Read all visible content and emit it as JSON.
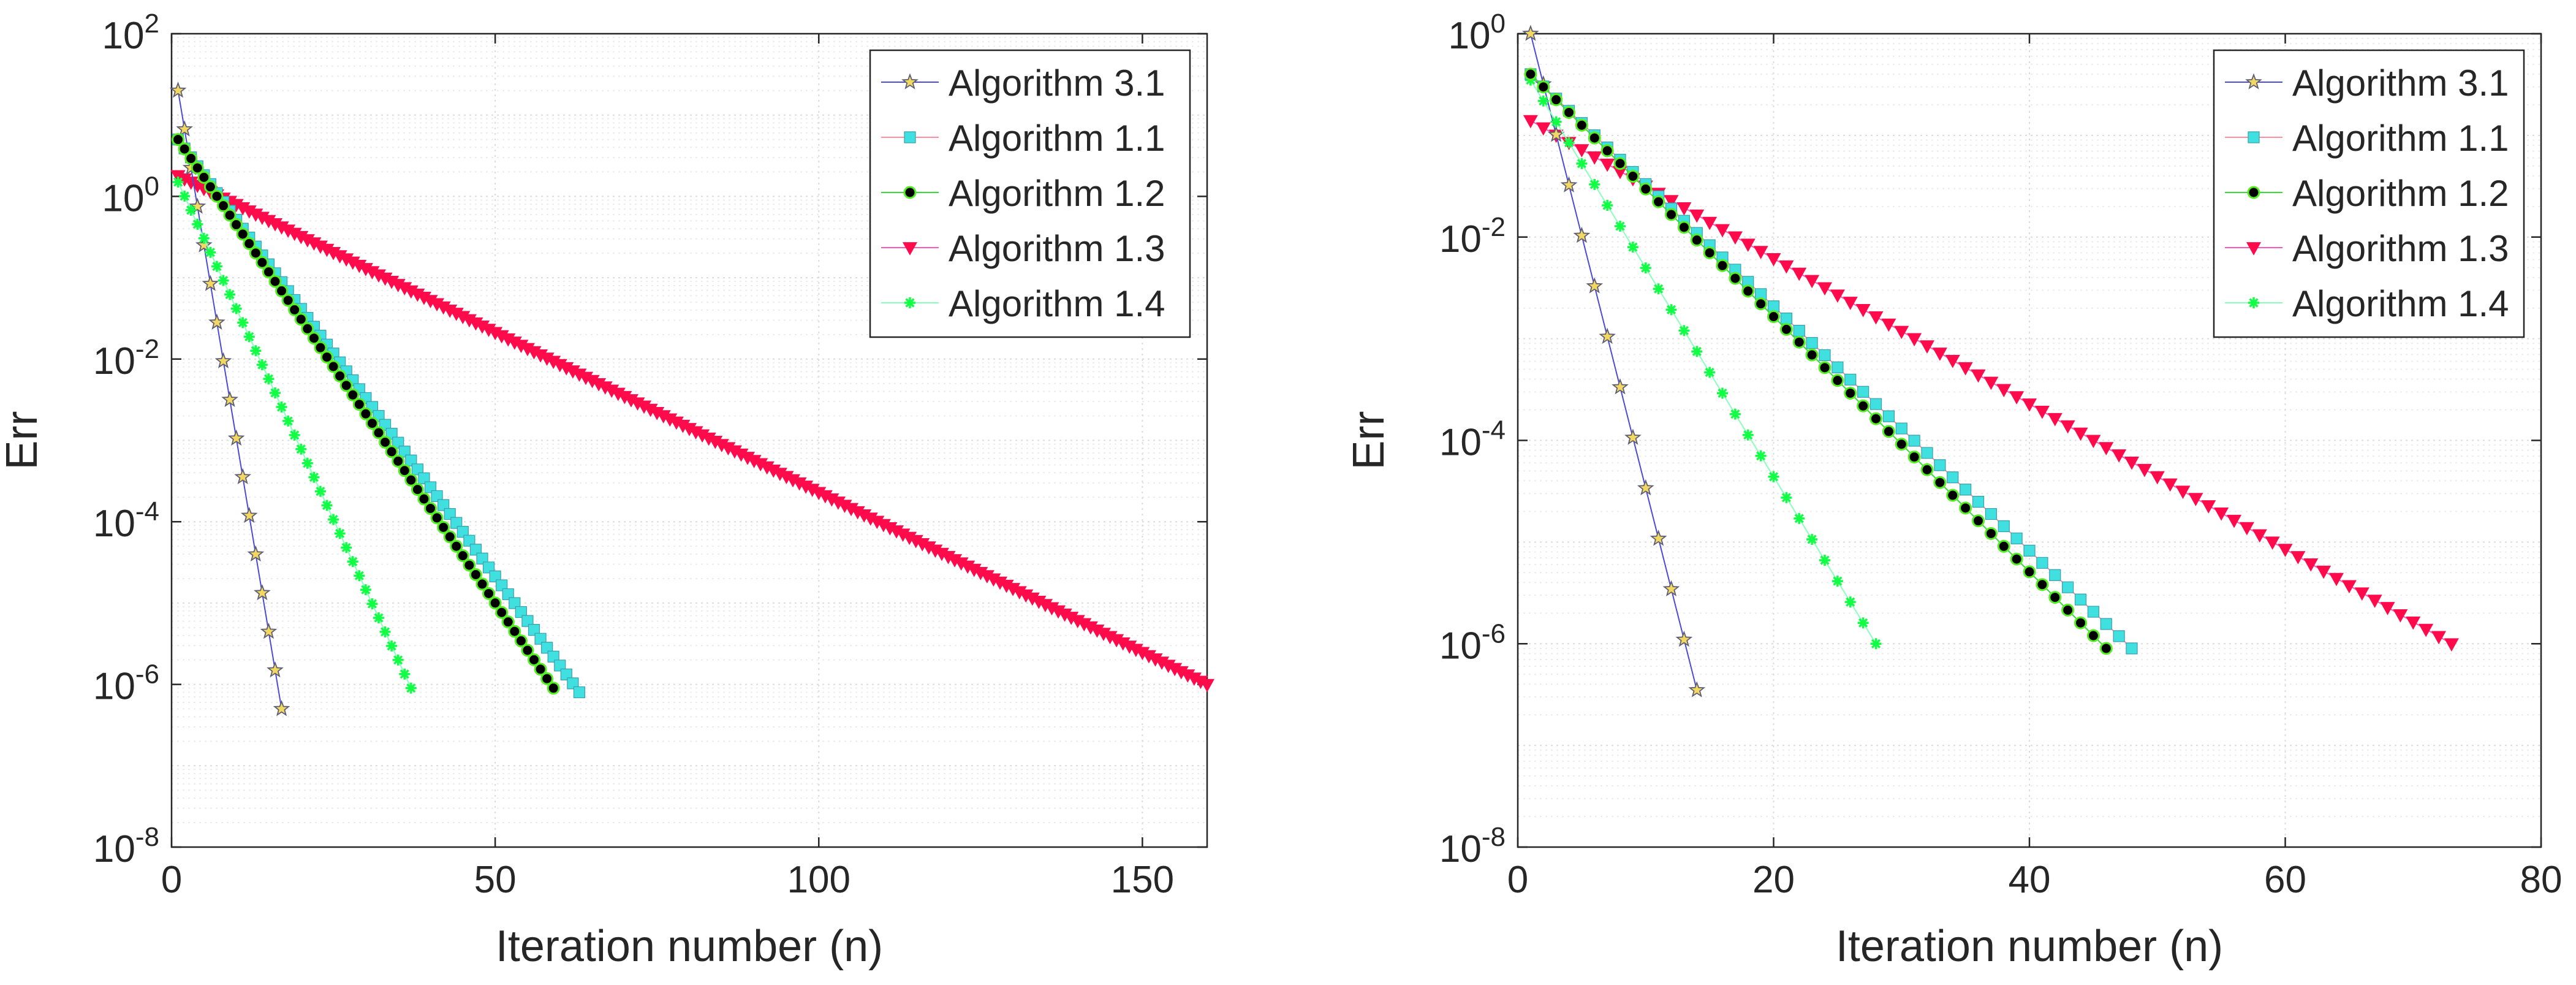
{
  "chart_data": [
    {
      "type": "line",
      "yscale": "log",
      "xlabel": "Iteration number (n)",
      "ylabel": "Err",
      "xlim": [
        0,
        160
      ],
      "ylim": [
        1e-08,
        100
      ],
      "xticks": [
        0,
        50,
        100,
        150
      ],
      "ytick_exponents": [
        2,
        0,
        -2,
        -4,
        -6,
        -8
      ],
      "ytick_base": "10",
      "grid": true,
      "minor_grid": true,
      "legend_position": "top-right",
      "series": [
        {
          "name": "Algorithm 3.1",
          "line_color": "#4a4ad6",
          "marker": "star",
          "marker_fill": "#f2d860",
          "marker_edge": "#5d5d78",
          "n_start": 1,
          "n_end": 17,
          "y_start": 20,
          "y_end": 5e-07
        },
        {
          "name": "Algorithm 1.1",
          "line_color": "#ff8fa0",
          "marker": "square",
          "marker_fill": "#40e0e0",
          "marker_edge": "#3aa0aa",
          "n_start": 1,
          "n_end": 63,
          "y_start": 5,
          "y_end": 8e-07
        },
        {
          "name": "Algorithm 1.2",
          "line_color": "#33dd33",
          "marker": "circle",
          "marker_fill": "#000000",
          "marker_edge": "#55ee22",
          "n_start": 1,
          "n_end": 59,
          "y_start": 5,
          "y_end": 9e-07
        },
        {
          "name": "Algorithm 1.3",
          "line_color": "#ff55bb",
          "marker": "triangle-down",
          "marker_fill": "#ff0a4a",
          "marker_edge": "#ff0a4a",
          "n_start": 1,
          "n_end": 160,
          "y_start": 1.8,
          "y_end": 1e-06
        },
        {
          "name": "Algorithm 1.4",
          "line_color": "#88ffbb",
          "marker": "asterisk",
          "marker_fill": "#11ff44",
          "marker_edge": "#11ff44",
          "n_start": 1,
          "n_end": 37,
          "y_start": 1.5,
          "y_end": 9e-07
        }
      ]
    },
    {
      "type": "line",
      "yscale": "log",
      "xlabel": "Iteration number (n)",
      "ylabel": "Err",
      "xlim": [
        0,
        80
      ],
      "ylim": [
        1e-08,
        1
      ],
      "xticks": [
        0,
        20,
        40,
        60,
        80
      ],
      "ytick_exponents": [
        0,
        -2,
        -4,
        -6,
        -8
      ],
      "ytick_base": "10",
      "grid": true,
      "minor_grid": true,
      "legend_position": "top-right",
      "series": [
        {
          "name": "Algorithm 3.1",
          "line_color": "#4a4ad6",
          "marker": "star",
          "marker_fill": "#f2d860",
          "marker_edge": "#5d5d78",
          "n_start": 1,
          "n_end": 14,
          "y_start": 1.0,
          "y_end": 3.5e-07
        },
        {
          "name": "Algorithm 1.1",
          "line_color": "#ff8fa0",
          "marker": "square",
          "marker_fill": "#40e0e0",
          "marker_edge": "#3aa0aa",
          "n_start": 1,
          "n_end": 48,
          "y_start": 0.4,
          "y_end": 9e-07
        },
        {
          "name": "Algorithm 1.2",
          "line_color": "#33dd33",
          "marker": "circle",
          "marker_fill": "#000000",
          "marker_edge": "#55ee22",
          "n_start": 1,
          "n_end": 46,
          "y_start": 0.4,
          "y_end": 9e-07
        },
        {
          "name": "Algorithm 1.3",
          "line_color": "#ff55bb",
          "marker": "triangle-down",
          "marker_fill": "#ff0a4a",
          "marker_edge": "#ff0a4a",
          "n_start": 1,
          "n_end": 73,
          "y_start": 0.14,
          "y_end": 1e-06
        },
        {
          "name": "Algorithm 1.4",
          "line_color": "#88ffbb",
          "marker": "asterisk",
          "marker_fill": "#11ff44",
          "marker_edge": "#11ff44",
          "n_start": 1,
          "n_end": 28,
          "y_start": 0.35,
          "y_end": 1e-06
        }
      ]
    }
  ]
}
